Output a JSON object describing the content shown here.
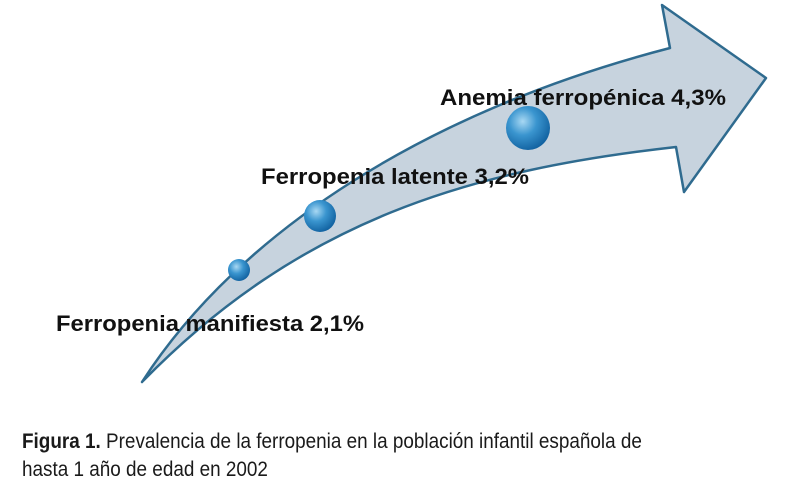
{
  "colors": {
    "arrow_fill": "#c7d3de",
    "arrow_stroke": "#2f6b8f",
    "dot_light": "#9fd3f1",
    "dot_dark": "#1670b3"
  },
  "stages": [
    {
      "label": "Ferropenia manifiesta 2,1%",
      "marker": "small-dot"
    },
    {
      "label": "Ferropenia latente 3,2%",
      "marker": "medium-dot"
    },
    {
      "label": "Anemia ferropénica 4,3%",
      "marker": "large-dot"
    }
  ],
  "caption": {
    "figure_label": "Figura 1.",
    "line1": "Prevalencia de la ferropenia en la población infantil española de",
    "line2": "hasta 1 año de edad en 2002"
  }
}
